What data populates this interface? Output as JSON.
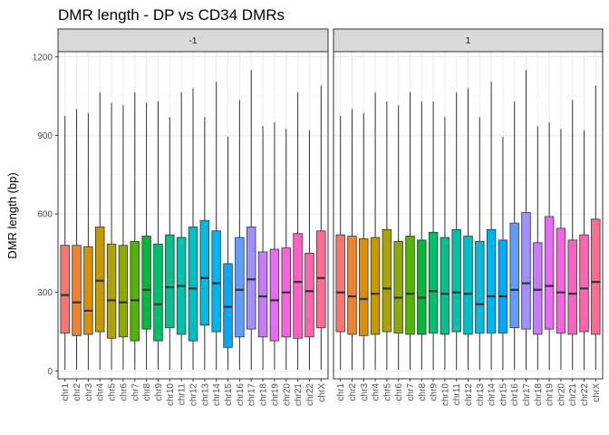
{
  "chart_data": {
    "type": "boxplot",
    "title": "DMR length - DP vs CD34 DMRs",
    "xlabel": "",
    "ylabel": "DMR length (bp)",
    "ylim": [
      -30,
      1220
    ],
    "yticks": [
      0,
      300,
      600,
      900,
      1200
    ],
    "grid": true,
    "legend": "none",
    "categories": [
      "chr1",
      "chr2",
      "chr3",
      "chr4",
      "chr5",
      "chr6",
      "chr7",
      "chr8",
      "chr9",
      "chr10",
      "chr11",
      "chr12",
      "chr13",
      "chr14",
      "chr15",
      "chr16",
      "chr17",
      "chr18",
      "chr19",
      "chr20",
      "chr21",
      "chr22",
      "chrX"
    ],
    "colors": [
      "#F8766D",
      "#EB8335",
      "#DA8F00",
      "#C49A00",
      "#AAA300",
      "#8CAB00",
      "#53B400",
      "#00BA38",
      "#00BE6C",
      "#00C08E",
      "#00C1AB",
      "#00BFC4",
      "#00BBDC",
      "#00B4F0",
      "#00A9FF",
      "#619CFF",
      "#9E90FF",
      "#C77CFF",
      "#E76BF3",
      "#F962DD",
      "#FF61C3",
      "#FF65AC",
      "#FF6C91"
    ],
    "facets": [
      {
        "label": "-1",
        "boxes": [
          {
            "min": 5,
            "q1": 145,
            "median": 290,
            "q3": 480,
            "max": 975
          },
          {
            "min": 5,
            "q1": 135,
            "median": 262,
            "q3": 480,
            "max": 1000
          },
          {
            "min": 5,
            "q1": 140,
            "median": 230,
            "q3": 475,
            "max": 985
          },
          {
            "min": 5,
            "q1": 150,
            "median": 345,
            "q3": 550,
            "max": 1065
          },
          {
            "min": 5,
            "q1": 125,
            "median": 270,
            "q3": 485,
            "max": 1025
          },
          {
            "min": 5,
            "q1": 130,
            "median": 262,
            "q3": 480,
            "max": 1015
          },
          {
            "min": 5,
            "q1": 115,
            "median": 270,
            "q3": 495,
            "max": 1065
          },
          {
            "min": 5,
            "q1": 160,
            "median": 310,
            "q3": 515,
            "max": 1025
          },
          {
            "min": 5,
            "q1": 115,
            "median": 255,
            "q3": 485,
            "max": 1030
          },
          {
            "min": 5,
            "q1": 165,
            "median": 320,
            "q3": 520,
            "max": 970
          },
          {
            "min": 5,
            "q1": 140,
            "median": 325,
            "q3": 510,
            "max": 1065
          },
          {
            "min": 5,
            "q1": 115,
            "median": 315,
            "q3": 550,
            "max": 1080
          },
          {
            "min": 5,
            "q1": 175,
            "median": 355,
            "q3": 575,
            "max": 970
          },
          {
            "min": 5,
            "q1": 150,
            "median": 335,
            "q3": 535,
            "max": 1105
          },
          {
            "min": 5,
            "q1": 90,
            "median": 245,
            "q3": 410,
            "max": 895
          },
          {
            "min": 5,
            "q1": 130,
            "median": 310,
            "q3": 510,
            "max": 1035
          },
          {
            "min": 5,
            "q1": 160,
            "median": 350,
            "q3": 550,
            "max": 1150
          },
          {
            "min": 5,
            "q1": 130,
            "median": 285,
            "q3": 455,
            "max": 935
          },
          {
            "min": 5,
            "q1": 115,
            "median": 270,
            "q3": 465,
            "max": 950
          },
          {
            "min": 5,
            "q1": 130,
            "median": 300,
            "q3": 470,
            "max": 925
          },
          {
            "min": 5,
            "q1": 125,
            "median": 340,
            "q3": 525,
            "max": 1065
          },
          {
            "min": 5,
            "q1": 130,
            "median": 305,
            "q3": 450,
            "max": 920
          },
          {
            "min": 5,
            "q1": 165,
            "median": 355,
            "q3": 535,
            "max": 1090
          }
        ]
      },
      {
        "label": "1",
        "boxes": [
          {
            "min": 5,
            "q1": 150,
            "median": 300,
            "q3": 520,
            "max": 975
          },
          {
            "min": 5,
            "q1": 140,
            "median": 285,
            "q3": 515,
            "max": 1000
          },
          {
            "min": 5,
            "q1": 135,
            "median": 275,
            "q3": 505,
            "max": 985
          },
          {
            "min": 5,
            "q1": 140,
            "median": 295,
            "q3": 510,
            "max": 1065
          },
          {
            "min": 5,
            "q1": 150,
            "median": 315,
            "q3": 540,
            "max": 1030
          },
          {
            "min": 5,
            "q1": 145,
            "median": 280,
            "q3": 495,
            "max": 1015
          },
          {
            "min": 5,
            "q1": 140,
            "median": 295,
            "q3": 515,
            "max": 1065
          },
          {
            "min": 5,
            "q1": 140,
            "median": 280,
            "q3": 500,
            "max": 1030
          },
          {
            "min": 5,
            "q1": 145,
            "median": 305,
            "q3": 530,
            "max": 1030
          },
          {
            "min": 5,
            "q1": 140,
            "median": 295,
            "q3": 510,
            "max": 970
          },
          {
            "min": 5,
            "q1": 150,
            "median": 300,
            "q3": 540,
            "max": 1065
          },
          {
            "min": 5,
            "q1": 140,
            "median": 295,
            "q3": 515,
            "max": 1080
          },
          {
            "min": 5,
            "q1": 145,
            "median": 255,
            "q3": 495,
            "max": 970
          },
          {
            "min": 5,
            "q1": 145,
            "median": 285,
            "q3": 540,
            "max": 1105
          },
          {
            "min": 5,
            "q1": 145,
            "median": 285,
            "q3": 500,
            "max": 895
          },
          {
            "min": 5,
            "q1": 165,
            "median": 310,
            "q3": 565,
            "max": 1030
          },
          {
            "min": 5,
            "q1": 160,
            "median": 335,
            "q3": 605,
            "max": 1150
          },
          {
            "min": 5,
            "q1": 140,
            "median": 310,
            "q3": 490,
            "max": 935
          },
          {
            "min": 5,
            "q1": 160,
            "median": 325,
            "q3": 590,
            "max": 950
          },
          {
            "min": 5,
            "q1": 145,
            "median": 300,
            "q3": 545,
            "max": 925
          },
          {
            "min": 5,
            "q1": 140,
            "median": 295,
            "q3": 500,
            "max": 1035
          },
          {
            "min": 5,
            "q1": 150,
            "median": 315,
            "q3": 520,
            "max": 920
          },
          {
            "min": 5,
            "q1": 140,
            "median": 340,
            "q3": 580,
            "max": 1090
          }
        ]
      }
    ]
  }
}
